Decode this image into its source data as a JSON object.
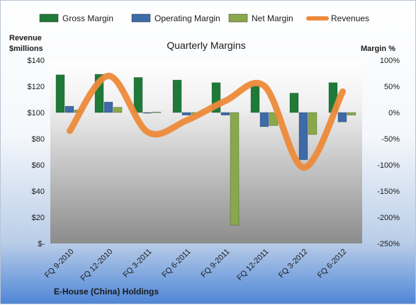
{
  "chart_data": {
    "type": "bar",
    "title": "Quarterly Margins",
    "footer": "E-House (China) Holdings",
    "left_axis_title": [
      "Revenue",
      "$millions"
    ],
    "right_axis_title": "Margin %",
    "categories": [
      "FQ 9-2010",
      "FQ 12-2010",
      "FQ 3-2011",
      "FQ 6-2011",
      "FQ 9-2011",
      "FQ 12-2011",
      "FQ 3-2012",
      "FQ 6-2012"
    ],
    "left_axis": {
      "min": 0,
      "max": 140,
      "step": 20,
      "tick_labels": [
        "$-",
        "$20",
        "$40",
        "$60",
        "$80",
        "$100",
        "$120",
        "$140"
      ]
    },
    "right_axis": {
      "min": -250,
      "max": 100,
      "step": 50,
      "tick_labels": [
        "-250%",
        "-200%",
        "-150%",
        "-100%",
        "-50%",
        "0%",
        "50%",
        "100%"
      ]
    },
    "series": [
      {
        "name": "Gross Margin",
        "type": "bar",
        "axis": "right",
        "color": "#1f7a3a",
        "values": [
          72,
          73,
          67,
          62,
          57,
          52,
          37,
          57
        ]
      },
      {
        "name": "Operating Margin",
        "type": "bar",
        "axis": "right",
        "color": "#3e6aa8",
        "values": [
          12,
          20,
          0,
          -5,
          -5,
          -27,
          -90,
          -18
        ]
      },
      {
        "name": "Net Margin",
        "type": "bar",
        "axis": "right",
        "color": "#8aa84a",
        "values": [
          5,
          10,
          1,
          -5,
          -215,
          -25,
          -42,
          -5
        ]
      },
      {
        "name": "Revenues",
        "type": "line",
        "axis": "left",
        "color": "#ed8a3a",
        "values": [
          86,
          128,
          85,
          94,
          109,
          120,
          58,
          116
        ]
      }
    ],
    "grid": false,
    "legend_position": "top"
  }
}
